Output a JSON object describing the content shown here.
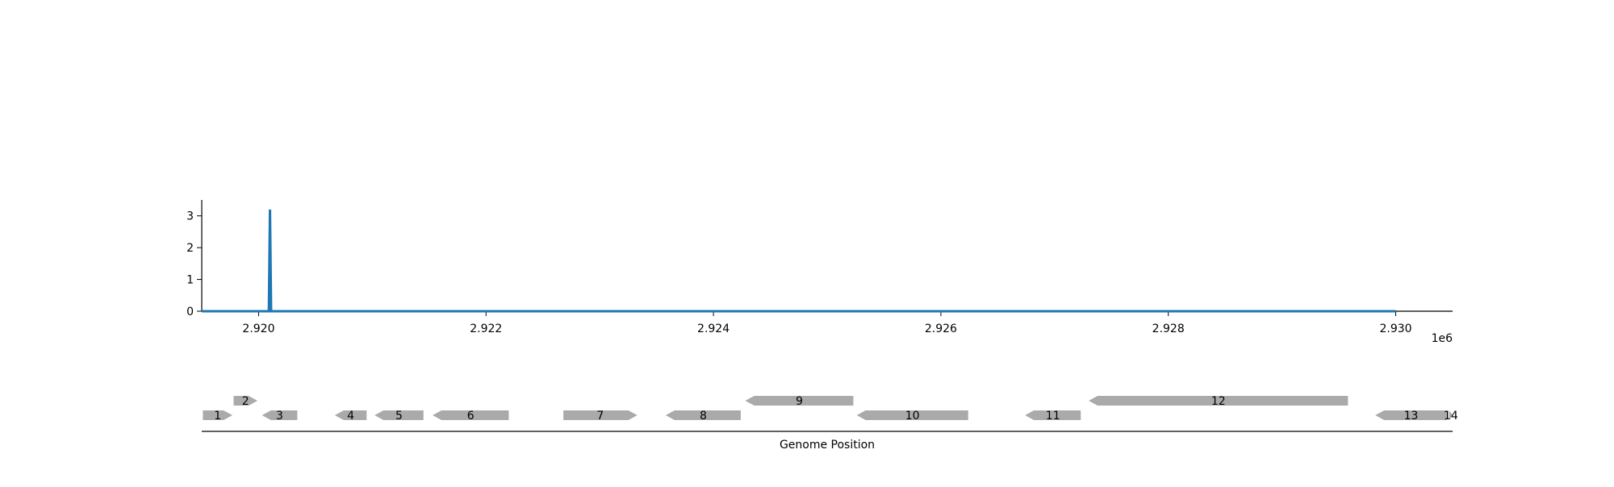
{
  "chart_data": [
    {
      "type": "line",
      "title": "",
      "xlabel": "",
      "ylabel": "",
      "x_offset_label": "1e6",
      "xlim": [
        2919500,
        2930500
      ],
      "ylim": [
        0,
        3.5
      ],
      "xticks": [
        2920000,
        2922000,
        2924000,
        2926000,
        2928000,
        2930000
      ],
      "xtick_labels": [
        "2.920",
        "2.922",
        "2.924",
        "2.926",
        "2.928",
        "2.930"
      ],
      "yticks": [
        0,
        1,
        2,
        3
      ],
      "ytick_labels": [
        "0",
        "1",
        "2",
        "3"
      ],
      "grid": false,
      "color": "#1f77b4",
      "series": [
        {
          "points": [
            [
              2919500,
              0
            ],
            [
              2920090,
              0
            ],
            [
              2920100,
              3.2
            ],
            [
              2920110,
              0
            ],
            [
              2930000,
              0
            ]
          ]
        }
      ]
    },
    {
      "type": "gene-map",
      "xlabel": "Genome Position",
      "xlim": [
        2919500,
        2930500
      ],
      "feature_color": "#aaaaaa",
      "genes": [
        {
          "label": "1",
          "start": 2919510,
          "end": 2919770,
          "strand": "+",
          "row": 0
        },
        {
          "label": "2",
          "start": 2919780,
          "end": 2919990,
          "strand": "+",
          "row": 1
        },
        {
          "label": "3",
          "start": 2920030,
          "end": 2920340,
          "strand": "-",
          "row": 0
        },
        {
          "label": "4",
          "start": 2920670,
          "end": 2920950,
          "strand": "-",
          "row": 0
        },
        {
          "label": "5",
          "start": 2921020,
          "end": 2921450,
          "strand": "-",
          "row": 0
        },
        {
          "label": "6",
          "start": 2921530,
          "end": 2922200,
          "strand": "-",
          "row": 0
        },
        {
          "label": "7",
          "start": 2922680,
          "end": 2923330,
          "strand": "+",
          "row": 0
        },
        {
          "label": "8",
          "start": 2923580,
          "end": 2924240,
          "strand": "-",
          "row": 0
        },
        {
          "label": "9",
          "start": 2924280,
          "end": 2925230,
          "strand": "-",
          "row": 1
        },
        {
          "label": "10",
          "start": 2925260,
          "end": 2926240,
          "strand": "-",
          "row": 0
        },
        {
          "label": "11",
          "start": 2926740,
          "end": 2927230,
          "strand": "-",
          "row": 0
        },
        {
          "label": "12",
          "start": 2927300,
          "end": 2929580,
          "strand": "-",
          "row": 1
        },
        {
          "label": "13",
          "start": 2929820,
          "end": 2930450,
          "strand": "-",
          "row": 0
        },
        {
          "label": "14",
          "start": 2930470,
          "end": 2930500,
          "strand": "+",
          "row": 0
        }
      ]
    }
  ]
}
